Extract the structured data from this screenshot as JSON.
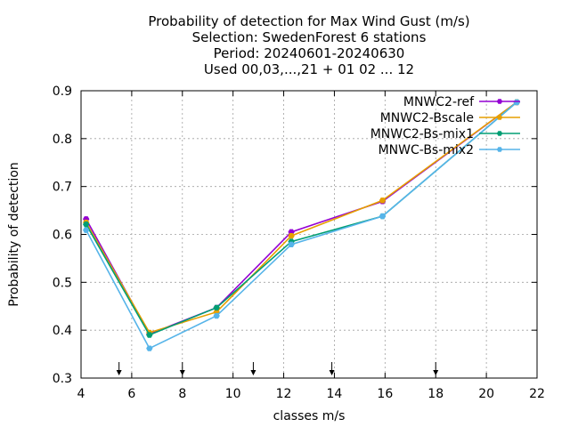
{
  "chart_data": {
    "type": "line",
    "title_lines": [
      "Probability of detection  for Max Wind Gust (m/s)",
      "Selection: SwedenForest      6 stations",
      "Period: 20240601-20240630",
      "Used 00,03,...,21 + 01 02 ... 12"
    ],
    "xlabel": "classes m/s",
    "ylabel": "Probability of detection",
    "xlim": [
      4,
      22
    ],
    "ylim": [
      0.3,
      0.9
    ],
    "xticks": [
      4,
      6,
      8,
      10,
      12,
      14,
      16,
      18,
      20,
      22
    ],
    "yticks": [
      0.3,
      0.4,
      0.5,
      0.6,
      0.7,
      0.8,
      0.9
    ],
    "grid": true,
    "legend_position": "top-right",
    "threshold_arrows_x": [
      5.5,
      8.0,
      10.8,
      13.9,
      18.0
    ],
    "series": [
      {
        "name": "MNWC2-ref",
        "color": "#9400d3",
        "x": [
          4.2,
          6.7,
          9.35,
          12.3,
          15.9,
          21.2
        ],
        "y": [
          0.632,
          0.392,
          0.447,
          0.605,
          0.669,
          0.876
        ]
      },
      {
        "name": "MNWC2-Bscale",
        "color": "#e69f00",
        "x": [
          4.2,
          6.7,
          9.35,
          12.3,
          15.9,
          21.2
        ],
        "y": [
          0.625,
          0.395,
          0.438,
          0.597,
          0.671,
          0.876
        ]
      },
      {
        "name": "MNWC2-Bs-mix1",
        "color": "#009e73",
        "x": [
          4.2,
          6.7,
          9.35,
          12.3,
          15.9,
          21.2
        ],
        "y": [
          0.621,
          0.39,
          0.447,
          0.585,
          0.638,
          0.876
        ]
      },
      {
        "name": "MNWC-Bs-mix2",
        "color": "#56b4e9",
        "x": [
          4.2,
          6.7,
          9.35,
          12.3,
          15.9,
          21.2
        ],
        "y": [
          0.609,
          0.362,
          0.43,
          0.579,
          0.638,
          0.876
        ]
      }
    ]
  }
}
